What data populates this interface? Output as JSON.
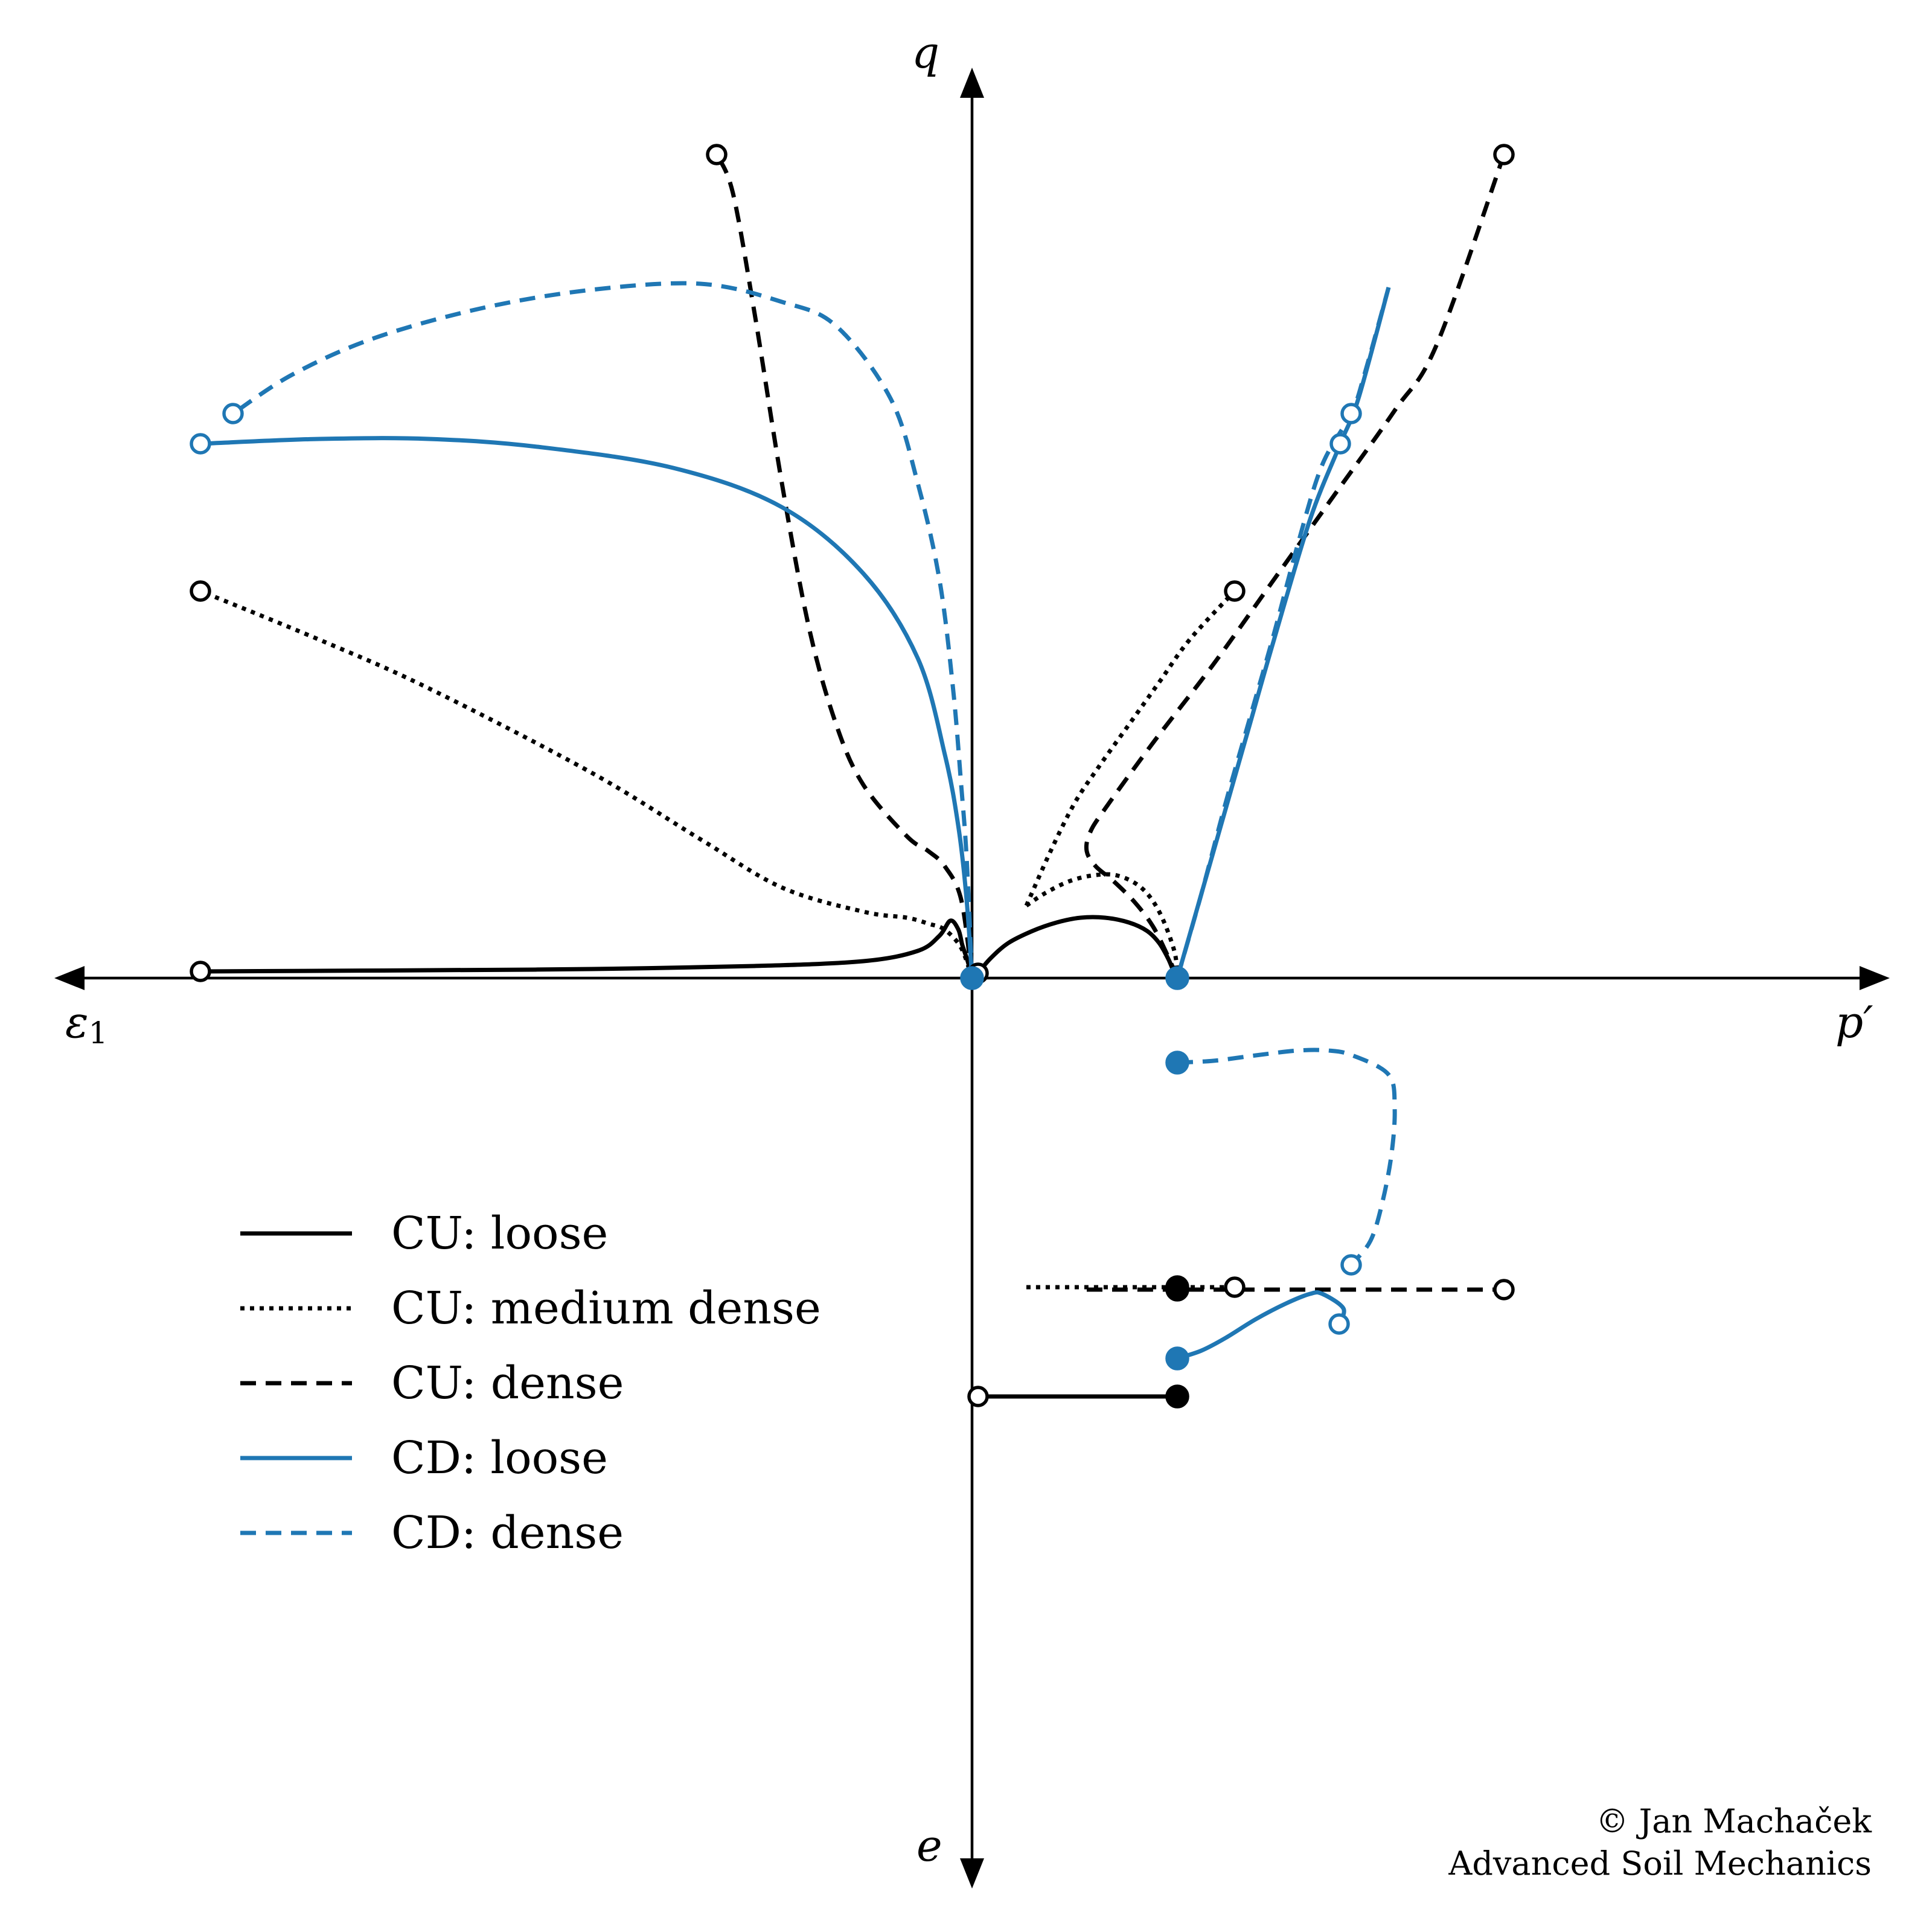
{
  "chart_data": {
    "type": "line",
    "title": "",
    "colors": {
      "black": "#000000",
      "blue": "#1f77b4"
    },
    "axes": {
      "q_label": "q",
      "p_label": "p′",
      "eps_label": "ε",
      "eps_subscript": "1",
      "e_label": "e"
    },
    "series": [
      {
        "name": "CU: loose",
        "color": "black",
        "style": "solid",
        "q_eps": [
          [
            0,
            0
          ],
          [
            0.8,
            28
          ],
          [
            1.8,
            55
          ],
          [
            2.5,
            80
          ],
          [
            4,
            95
          ],
          [
            6,
            70
          ],
          [
            10,
            45
          ],
          [
            20,
            28
          ],
          [
            40,
            20
          ],
          [
            70,
            15
          ],
          [
            100,
            13
          ],
          [
            120,
            12
          ],
          [
            142,
            11
          ]
        ],
        "p_q": [
          [
            10,
            8
          ],
          [
            30,
            32
          ],
          [
            60,
            58
          ],
          [
            100,
            78
          ],
          [
            140,
            92
          ],
          [
            180,
            100
          ],
          [
            220,
            100
          ],
          [
            260,
            92
          ],
          [
            290,
            78
          ],
          [
            310,
            58
          ],
          [
            325,
            32
          ],
          [
            335,
            8
          ],
          [
            340,
            0
          ]
        ],
        "e_p": [
          [
            340,
            -693
          ],
          [
            10,
            -693
          ]
        ],
        "start_e": [
          340,
          -693
        ],
        "end_eps": [
          142,
          11
        ],
        "end_p": [
          10,
          8
        ],
        "end_e": [
          10,
          -693
        ]
      },
      {
        "name": "CU: medium dense",
        "color": "black",
        "style": "dotted",
        "q_eps": [
          [
            0,
            0
          ],
          [
            2,
            50
          ],
          [
            5,
            80
          ],
          [
            8,
            90
          ],
          [
            12,
            100
          ],
          [
            20,
            110
          ],
          [
            35,
            150
          ],
          [
            50,
            230
          ],
          [
            70,
            340
          ],
          [
            100,
            480
          ],
          [
            120,
            560
          ],
          [
            142,
            641
          ]
        ],
        "p_q": [
          [
            90,
            120
          ],
          [
            120,
            140
          ],
          [
            160,
            160
          ],
          [
            200,
            170
          ],
          [
            240,
            170
          ],
          [
            280,
            150
          ],
          [
            310,
            110
          ],
          [
            335,
            45
          ],
          [
            340,
            0
          ]
        ],
        "p_q_upper": [
          [
            90,
            120
          ],
          [
            130,
            210
          ],
          [
            170,
            290
          ],
          [
            210,
            350
          ],
          [
            260,
            420
          ],
          [
            310,
            490
          ],
          [
            360,
            560
          ],
          [
            435,
            641
          ]
        ],
        "e_p": [
          [
            90,
            -512
          ],
          [
            435,
            -512
          ]
        ],
        "start_e": [
          340,
          -512
        ],
        "end_eps": [
          142,
          641
        ],
        "end_p": [
          435,
          641
        ],
        "end_e": [
          435,
          -512
        ]
      },
      {
        "name": "CU: dense",
        "color": "black",
        "style": "dashed",
        "q_eps": [
          [
            0,
            0
          ],
          [
            2,
            130
          ],
          [
            5,
            185
          ],
          [
            8,
            210
          ],
          [
            12,
            235
          ],
          [
            20,
            320
          ],
          [
            25,
            420
          ],
          [
            30,
            580
          ],
          [
            35,
            820
          ],
          [
            40,
            1100
          ],
          [
            44,
            1300
          ],
          [
            47,
            1364
          ]
        ],
        "p_q": [
          [
            340,
            0
          ],
          [
            325,
            35
          ],
          [
            300,
            85
          ],
          [
            270,
            125
          ],
          [
            235,
            160
          ],
          [
            205,
            185
          ],
          [
            190,
            210
          ],
          [
            195,
            240
          ],
          [
            220,
            280
          ],
          [
            300,
            390
          ],
          [
            400,
            520
          ],
          [
            500,
            660
          ],
          [
            600,
            800
          ],
          [
            700,
            940
          ],
          [
            770,
            1050
          ],
          [
            881,
            1364
          ]
        ],
        "e_p": [
          [
            190,
            -516
          ],
          [
            881,
            -516
          ]
        ],
        "start_e": [
          340,
          -516
        ],
        "end_eps": [
          47,
          1364
        ],
        "end_p": [
          881,
          1364
        ],
        "end_e": [
          881,
          -516
        ]
      },
      {
        "name": "CD: loose",
        "color": "blue",
        "style": "solid",
        "q_eps": [
          [
            0,
            0
          ],
          [
            1,
            130
          ],
          [
            2.5,
            250
          ],
          [
            5,
            370
          ],
          [
            10,
            530
          ],
          [
            20,
            670
          ],
          [
            35,
            780
          ],
          [
            55,
            845
          ],
          [
            80,
            880
          ],
          [
            100,
            893
          ],
          [
            120,
            893
          ],
          [
            142,
            885
          ]
        ],
        "p_q": [
          [
            340,
            0
          ],
          [
            380,
            140
          ],
          [
            420,
            280
          ],
          [
            460,
            420
          ],
          [
            500,
            560
          ],
          [
            560,
            760
          ],
          [
            610,
            885
          ],
          [
            640,
            960
          ],
          [
            690,
            1144
          ]
        ],
        "e_p": [
          [
            340,
            -630
          ],
          [
            380,
            -617
          ],
          [
            420,
            -596
          ],
          [
            470,
            -565
          ],
          [
            520,
            -539
          ],
          [
            560,
            -523
          ],
          [
            580,
            -523
          ],
          [
            615,
            -547
          ],
          [
            608,
            -573
          ]
        ],
        "start_e": [
          340,
          -630
        ],
        "end_eps": [
          142,
          885
        ],
        "end_p": [
          610,
          885
        ],
        "end_e": [
          608,
          -573
        ]
      },
      {
        "name": "CD: dense",
        "color": "blue",
        "style": "dashed",
        "q_eps": [
          [
            0,
            0
          ],
          [
            1,
            200
          ],
          [
            2,
            320
          ],
          [
            3.5,
            480
          ],
          [
            6,
            660
          ],
          [
            10,
            820
          ],
          [
            15,
            960
          ],
          [
            25,
            1080
          ],
          [
            35,
            1120
          ],
          [
            50,
            1150
          ],
          [
            70,
            1140
          ],
          [
            90,
            1110
          ],
          [
            110,
            1060
          ],
          [
            125,
            1000
          ],
          [
            136,
            935
          ]
        ],
        "p_q": [
          [
            340,
            0
          ],
          [
            380,
            140
          ],
          [
            420,
            290
          ],
          [
            460,
            430
          ],
          [
            500,
            570
          ],
          [
            540,
            720
          ],
          [
            580,
            850
          ],
          [
            628,
            935
          ],
          [
            650,
            1000
          ],
          [
            690,
            1144
          ]
        ],
        "e_p": [
          [
            340,
            -140
          ],
          [
            400,
            -137
          ],
          [
            470,
            -128
          ],
          [
            540,
            -120
          ],
          [
            590,
            -120
          ],
          [
            630,
            -128
          ],
          [
            690,
            -160
          ],
          [
            700,
            -215
          ],
          [
            695,
            -290
          ],
          [
            680,
            -370
          ],
          [
            660,
            -435
          ],
          [
            628,
            -475
          ]
        ],
        "start_e": [
          340,
          -140
        ],
        "end_eps": [
          136,
          935
        ],
        "end_p": [
          628,
          935
        ],
        "end_e": [
          628,
          -475
        ]
      }
    ],
    "legend": {
      "position": "lower-left",
      "entries": [
        "CU: loose",
        "CU: medium dense",
        "CU: dense",
        "CD: loose",
        "CD: dense"
      ]
    }
  },
  "credit": {
    "line1": "© Jan Machaček",
    "line2": "Advanced Soil Mechanics"
  }
}
